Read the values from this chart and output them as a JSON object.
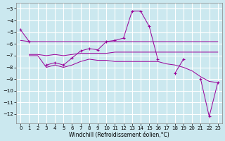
{
  "xlabel": "Windchill (Refroidissement éolien,°C)",
  "background_color": "#cbe8ef",
  "grid_color": "#ffffff",
  "line_color": "#990099",
  "xlim": [
    -0.5,
    23.5
  ],
  "ylim": [
    -12.8,
    -2.5
  ],
  "yticks": [
    -12,
    -11,
    -10,
    -9,
    -8,
    -7,
    -6,
    -5,
    -4,
    -3
  ],
  "xticks": [
    0,
    1,
    2,
    3,
    4,
    5,
    6,
    7,
    8,
    9,
    10,
    11,
    12,
    13,
    14,
    15,
    16,
    17,
    18,
    19,
    20,
    21,
    22,
    23
  ],
  "line_main_x": [
    0,
    1,
    2,
    3,
    4,
    5,
    6,
    7,
    8,
    9,
    10,
    11,
    12,
    13,
    14,
    15,
    16,
    17,
    18,
    19,
    20,
    21,
    22,
    23
  ],
  "line_main_y": [
    -4.8,
    -5.8,
    null,
    -7.8,
    -7.6,
    -7.8,
    -7.2,
    -6.6,
    -6.4,
    -6.5,
    -5.8,
    -5.7,
    -5.5,
    -3.2,
    -3.2,
    -4.5,
    -7.3,
    null,
    -8.5,
    -7.3,
    null,
    -9.0,
    -12.2,
    -9.3
  ],
  "line_flat1_x": [
    0,
    1,
    2,
    3,
    4,
    5,
    6,
    7,
    8,
    9,
    10,
    11,
    12,
    13,
    14,
    15,
    16,
    17,
    18,
    19,
    20,
    21,
    22,
    23
  ],
  "line_flat1_y": [
    -5.7,
    -5.8,
    -5.8,
    -5.8,
    -5.8,
    -5.8,
    -5.8,
    -5.8,
    -5.8,
    -5.8,
    -5.8,
    -5.8,
    -5.8,
    -5.8,
    -5.8,
    -5.8,
    -5.8,
    -5.8,
    -5.8,
    -5.8,
    -5.8,
    -5.8,
    -5.8,
    -5.8
  ],
  "line_flat2_x": [
    1,
    2,
    3,
    4,
    5,
    6,
    7,
    8,
    9,
    10,
    11,
    12,
    13,
    14,
    15,
    16,
    17,
    18,
    19,
    20,
    21,
    22,
    23
  ],
  "line_flat2_y": [
    -6.9,
    -6.9,
    -7.0,
    -6.9,
    -7.0,
    -6.9,
    -6.8,
    -6.8,
    -6.8,
    -6.8,
    -6.7,
    -6.7,
    -6.7,
    -6.7,
    -6.7,
    -6.7,
    -6.7,
    -6.7,
    -6.7,
    -6.7,
    -6.7,
    -6.7,
    -6.7
  ],
  "line_slope_x": [
    1,
    2,
    3,
    4,
    5,
    6,
    7,
    8,
    9,
    10,
    11,
    12,
    13,
    14,
    15,
    16,
    17,
    18,
    19,
    20,
    21,
    22,
    23
  ],
  "line_slope_y": [
    -7.0,
    -7.0,
    -8.0,
    -7.8,
    -8.0,
    -7.8,
    -7.5,
    -7.3,
    -7.4,
    -7.4,
    -7.5,
    -7.5,
    -7.5,
    -7.5,
    -7.5,
    -7.5,
    -7.7,
    -7.8,
    -8.0,
    -8.3,
    -8.8,
    -9.2,
    -9.3
  ]
}
